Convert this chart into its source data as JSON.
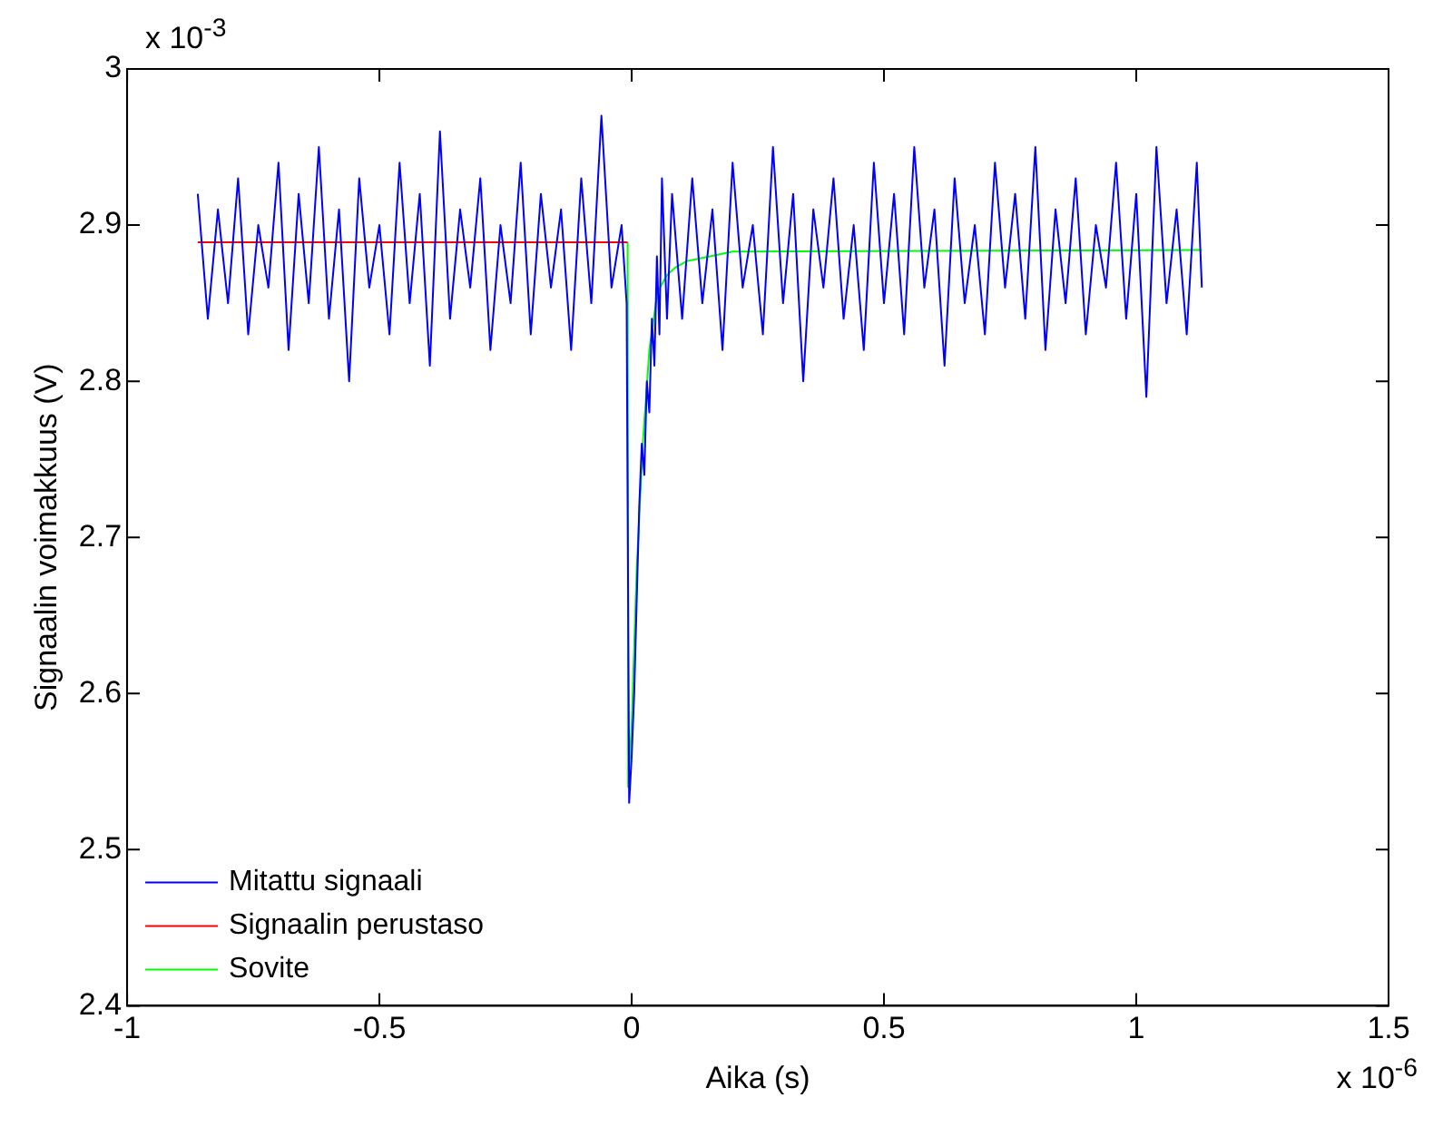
{
  "chart_data": {
    "type": "line",
    "xlabel": "Aika (s)",
    "ylabel": "Signaalin voimakkuus (V)",
    "annotations": [
      "x 10$^{-3}$",
      "x 10$^{-6}$"
    ],
    "xlim": [
      -1,
      1.5
    ],
    "xticks": [
      -1,
      -0.5,
      0,
      0.5,
      1,
      1.5
    ],
    "ylim": [
      2.4,
      3
    ],
    "yticks": [
      2.4,
      2.5,
      2.6,
      2.7,
      2.8,
      2.9,
      3
    ],
    "grid": false,
    "legend": "bottom left",
    "marker": "none",
    "line_style": "solid",
    "series": [
      {
        "name": "Mitattu signaali",
        "color": "#0000ff",
        "x": [
          -0.86,
          -0.84,
          -0.82,
          -0.8,
          -0.78,
          -0.76,
          -0.74,
          -0.72,
          -0.7,
          -0.68,
          -0.66,
          -0.64,
          -0.62,
          -0.6,
          -0.58,
          -0.56,
          -0.54,
          -0.52,
          -0.5,
          -0.48,
          -0.46,
          -0.44,
          -0.42,
          -0.4,
          -0.38,
          -0.36,
          -0.34,
          -0.32,
          -0.3,
          -0.28,
          -0.26,
          -0.24,
          -0.22,
          -0.2,
          -0.18,
          -0.16,
          -0.14,
          -0.12,
          -0.1,
          -0.08,
          -0.06,
          -0.04,
          -0.02,
          -0.01,
          -0.005,
          0,
          0.005,
          0.01,
          0.015,
          0.02,
          0.025,
          0.03,
          0.035,
          0.04,
          0.045,
          0.05,
          0.055,
          0.06,
          0.07,
          0.08,
          0.1,
          0.12,
          0.14,
          0.16,
          0.18,
          0.2,
          0.22,
          0.24,
          0.26,
          0.28,
          0.3,
          0.32,
          0.34,
          0.36,
          0.38,
          0.4,
          0.42,
          0.44,
          0.46,
          0.48,
          0.5,
          0.52,
          0.54,
          0.56,
          0.58,
          0.6,
          0.62,
          0.64,
          0.66,
          0.68,
          0.7,
          0.72,
          0.74,
          0.76,
          0.78,
          0.8,
          0.82,
          0.84,
          0.86,
          0.88,
          0.9,
          0.92,
          0.94,
          0.96,
          0.98,
          1,
          1.02,
          1.04,
          1.06,
          1.08,
          1.1,
          1.12,
          1.13
        ],
        "values": [
          2.92,
          2.84,
          2.91,
          2.85,
          2.93,
          2.83,
          2.9,
          2.86,
          2.94,
          2.82,
          2.92,
          2.85,
          2.95,
          2.84,
          2.91,
          2.8,
          2.93,
          2.86,
          2.9,
          2.83,
          2.94,
          2.85,
          2.92,
          2.81,
          2.96,
          2.84,
          2.91,
          2.86,
          2.93,
          2.82,
          2.9,
          2.85,
          2.94,
          2.83,
          2.92,
          2.86,
          2.91,
          2.82,
          2.93,
          2.85,
          2.97,
          2.86,
          2.9,
          2.85,
          2.53,
          2.56,
          2.6,
          2.66,
          2.72,
          2.76,
          2.74,
          2.8,
          2.78,
          2.84,
          2.81,
          2.88,
          2.83,
          2.93,
          2.84,
          2.92,
          2.84,
          2.93,
          2.85,
          2.91,
          2.82,
          2.94,
          2.86,
          2.9,
          2.83,
          2.95,
          2.85,
          2.92,
          2.8,
          2.91,
          2.86,
          2.93,
          2.84,
          2.9,
          2.82,
          2.94,
          2.85,
          2.92,
          2.83,
          2.95,
          2.86,
          2.91,
          2.81,
          2.93,
          2.85,
          2.9,
          2.83,
          2.94,
          2.86,
          2.92,
          2.84,
          2.95,
          2.82,
          2.91,
          2.85,
          2.93,
          2.83,
          2.9,
          2.86,
          2.94,
          2.84,
          2.92,
          2.79,
          2.95,
          2.85,
          2.91,
          2.83,
          2.94,
          2.86
        ]
      },
      {
        "name": "Signaalin perustaso",
        "color": "#ff0000",
        "x": [
          -0.86,
          -0.008
        ],
        "values": [
          2.889,
          2.889
        ]
      },
      {
        "name": "Sovite",
        "color": "#00ff00",
        "x": [
          -0.008,
          -0.007,
          0,
          0.01,
          0.022,
          0.035,
          0.051,
          0.07,
          0.087,
          0.11,
          0.14,
          0.2,
          1.13
        ],
        "values": [
          2.889,
          2.54,
          2.58,
          2.68,
          2.76,
          2.82,
          2.857,
          2.868,
          2.873,
          2.877,
          2.879,
          2.883,
          2.884
        ]
      }
    ]
  }
}
